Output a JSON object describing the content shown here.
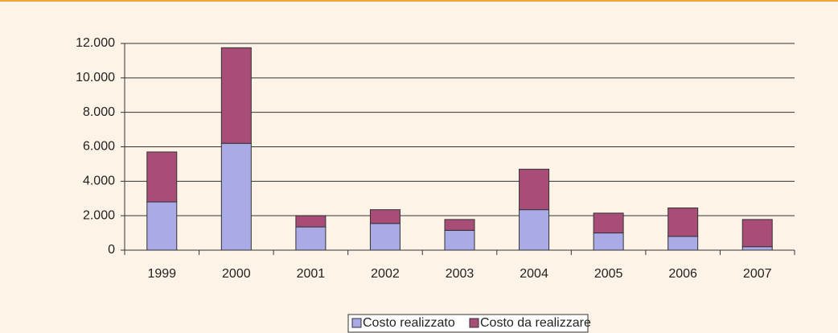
{
  "chart_data": {
    "type": "stacked_bar",
    "categories": [
      "1999",
      "2000",
      "2001",
      "2002",
      "2003",
      "2004",
      "2005",
      "2006",
      "2007"
    ],
    "series": [
      {
        "name": "Costo realizzato",
        "color": "#aaaae6",
        "values": [
          2800,
          6200,
          1350,
          1550,
          1150,
          2350,
          1000,
          800,
          200
        ]
      },
      {
        "name": "Costo da realizzare",
        "color": "#a84c78",
        "values": [
          2900,
          5550,
          650,
          800,
          630,
          2350,
          1150,
          1650,
          1580
        ]
      }
    ],
    "ylim": [
      0,
      12000
    ],
    "yticks": [
      0,
      {
        "value": 2000,
        "label": "2.000"
      },
      {
        "value": 4000,
        "label": "4.000"
      },
      {
        "value": 6000,
        "label": "6.000"
      },
      {
        "value": 8000,
        "label": "8.000"
      },
      {
        "value": 10000,
        "label": "10.000"
      },
      {
        "value": 12000,
        "label": "12.000"
      }
    ],
    "grid": true,
    "legend": "bottom"
  }
}
